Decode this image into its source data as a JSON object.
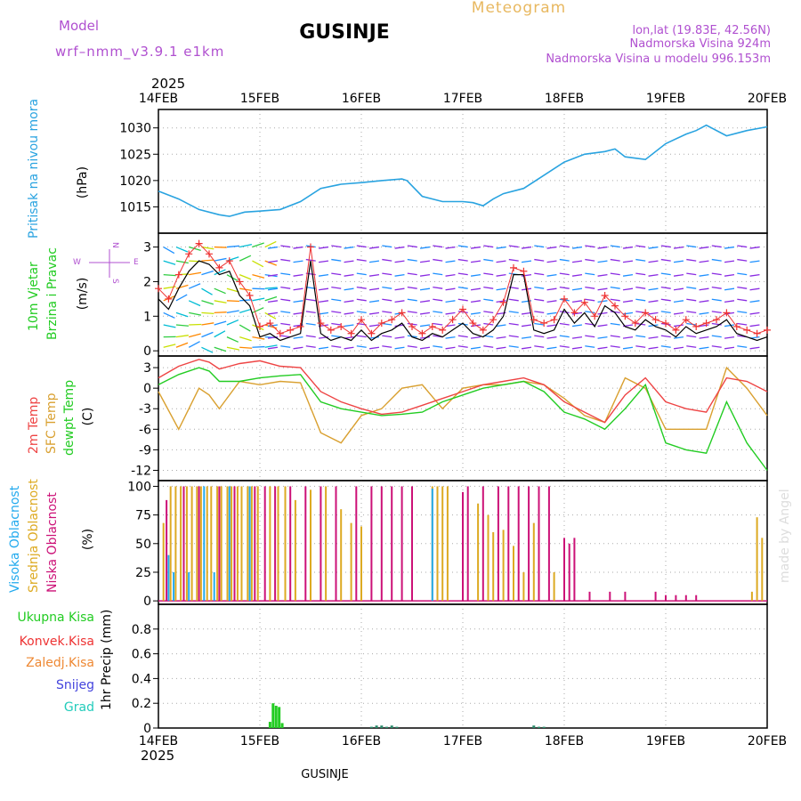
{
  "header": {
    "model_label": "Model",
    "model_name": "wrf–nmm_v3.9.1  e1km",
    "title": "GUSINJE",
    "meteogram_label": "Meteogram",
    "coords": "lon,lat (19.83E, 42.56N)",
    "altitude": "Nadmorska Visina 924m",
    "model_altitude": "Nadmorska Visina u modelu 996.153m",
    "year": "2025",
    "footer_title": "GUSINJE",
    "credit": "made by Angel"
  },
  "colors": {
    "pressure": "#29a3e0",
    "temp2m": "#ee4444",
    "sfc_temp": "#d9a030",
    "dewpt": "#22cc22",
    "cloud_high": "#22aaee",
    "cloud_mid": "#ddaa22",
    "cloud_low": "#cc1177",
    "label_purple": "#b050d0",
    "label_orange": "#e8b860",
    "precip_total": "#22cc22",
    "precip_conv": "#ee3333",
    "precip_frozen": "#ee8833",
    "precip_snow": "#4444dd",
    "precip_hail": "#22ccbb",
    "wind_speed": "#000000",
    "gust": "#ee3333"
  },
  "chart_data": [
    {
      "type": "line",
      "panel": "pressure",
      "ylabel_main": "Pritisak na nivou mora",
      "ylabel_unit": "(hPa)",
      "x_ticks": [
        "14FEB",
        "15FEB",
        "16FEB",
        "17FEB",
        "18FEB",
        "19FEB",
        "20FEB"
      ],
      "ylim": [
        1010,
        1033.5
      ],
      "yticks": [
        1015,
        1020,
        1025,
        1030
      ],
      "grid": true,
      "x": [
        0,
        0.2,
        0.4,
        0.6,
        0.7,
        0.85,
        1.0,
        1.2,
        1.4,
        1.6,
        1.8,
        2.0,
        2.2,
        2.4,
        2.45,
        2.6,
        2.8,
        3.0,
        3.1,
        3.2,
        3.3,
        3.4,
        3.6,
        3.8,
        4.0,
        4.2,
        4.4,
        4.5,
        4.6,
        4.8,
        5.0,
        5.2,
        5.3,
        5.4,
        5.6,
        5.8,
        6.0
      ],
      "series": [
        {
          "values": [
            1018,
            1016.5,
            1014.5,
            1013.5,
            1013.2,
            1014,
            1014.2,
            1014.5,
            1016,
            1018.5,
            1019.3,
            1019.6,
            1020,
            1020.3,
            1020,
            1017,
            1016,
            1016,
            1015.8,
            1015.2,
            1016.5,
            1017.5,
            1018.5,
            1021,
            1023.5,
            1025,
            1025.5,
            1026,
            1024.5,
            1024,
            1027,
            1028.8,
            1029.5,
            1030.5,
            1028.5,
            1029.5,
            1030.2
          ]
        }
      ]
    },
    {
      "type": "line",
      "panel": "wind",
      "ylabel_main": "10m Vjetar",
      "ylabel_sub": "Brzina i Pravac",
      "ylabel_unit": "(m/s)",
      "compass": {
        "n": "N",
        "s": "S",
        "w": "W",
        "e": "E"
      },
      "ylim": [
        -0.15,
        3.4
      ],
      "yticks": [
        0,
        1,
        2,
        3
      ],
      "grid": true,
      "x": [
        0,
        0.1,
        0.2,
        0.3,
        0.4,
        0.5,
        0.6,
        0.7,
        0.8,
        0.9,
        1.0,
        1.1,
        1.2,
        1.3,
        1.4,
        1.5,
        1.6,
        1.7,
        1.8,
        1.9,
        2.0,
        2.1,
        2.2,
        2.3,
        2.4,
        2.5,
        2.6,
        2.7,
        2.8,
        2.9,
        3.0,
        3.1,
        3.2,
        3.3,
        3.4,
        3.5,
        3.6,
        3.7,
        3.8,
        3.9,
        4.0,
        4.1,
        4.2,
        4.3,
        4.4,
        4.5,
        4.6,
        4.7,
        4.8,
        4.9,
        5.0,
        5.1,
        5.2,
        5.3,
        5.4,
        5.5,
        5.6,
        5.7,
        5.8,
        5.9,
        6.0
      ],
      "series": [
        {
          "name": "speed",
          "values": [
            1.5,
            1.2,
            1.8,
            2.3,
            2.6,
            2.5,
            2.2,
            2.3,
            1.6,
            1.3,
            0.4,
            0.5,
            0.3,
            0.4,
            0.5,
            2.6,
            0.5,
            0.3,
            0.4,
            0.3,
            0.6,
            0.3,
            0.5,
            0.6,
            0.8,
            0.4,
            0.3,
            0.5,
            0.4,
            0.6,
            0.8,
            0.5,
            0.4,
            0.6,
            1.0,
            2.2,
            2.2,
            0.6,
            0.5,
            0.6,
            1.2,
            0.8,
            1.1,
            0.7,
            1.3,
            1.1,
            0.7,
            0.6,
            0.9,
            0.7,
            0.6,
            0.4,
            0.7,
            0.5,
            0.6,
            0.7,
            0.9,
            0.5,
            0.4,
            0.3,
            0.4
          ]
        },
        {
          "name": "gust",
          "values": [
            1.8,
            1.5,
            2.2,
            2.8,
            3.1,
            2.8,
            2.4,
            2.6,
            2.0,
            1.6,
            0.7,
            0.8,
            0.5,
            0.6,
            0.7,
            3.0,
            0.8,
            0.6,
            0.7,
            0.5,
            0.9,
            0.5,
            0.8,
            0.9,
            1.1,
            0.7,
            0.5,
            0.7,
            0.6,
            0.9,
            1.2,
            0.8,
            0.6,
            0.9,
            1.4,
            2.4,
            2.3,
            0.9,
            0.8,
            0.9,
            1.5,
            1.1,
            1.4,
            1.0,
            1.6,
            1.3,
            1.0,
            0.8,
            1.1,
            0.9,
            0.8,
            0.6,
            0.9,
            0.7,
            0.8,
            0.9,
            1.1,
            0.7,
            0.6,
            0.5,
            0.6
          ]
        }
      ]
    },
    {
      "type": "line",
      "panel": "temperature",
      "ylabel_main": "2m Temp",
      "ylabel_sfc": "SFC Temp",
      "ylabel_dew": "dewpt Temp",
      "ylabel_unit": "(C)",
      "ylim": [
        -13.5,
        4.7
      ],
      "yticks": [
        3,
        0,
        -3,
        -6,
        -9,
        -12
      ],
      "grid": true,
      "x": [
        0,
        0.2,
        0.4,
        0.5,
        0.6,
        0.8,
        1.0,
        1.2,
        1.4,
        1.6,
        1.8,
        2.0,
        2.2,
        2.4,
        2.6,
        2.8,
        3.0,
        3.2,
        3.4,
        3.6,
        3.8,
        4.0,
        4.2,
        4.4,
        4.6,
        4.8,
        5.0,
        5.2,
        5.4,
        5.6,
        5.8,
        6.0
      ],
      "series": [
        {
          "name": "2m Temp",
          "values": [
            1.5,
            3.2,
            4.2,
            3.8,
            2.8,
            3.6,
            4.0,
            3.2,
            3.0,
            -0.5,
            -2.0,
            -3.0,
            -3.8,
            -3.5,
            -2.5,
            -1.5,
            -0.5,
            0.5,
            1.0,
            1.5,
            0.5,
            -2.0,
            -3.5,
            -5.0,
            -1.0,
            1.5,
            -2.0,
            -3.0,
            -3.5,
            1.5,
            1.0,
            -0.5
          ]
        },
        {
          "name": "SFC Temp",
          "values": [
            -0.5,
            -6.0,
            0.0,
            -1.0,
            -3.0,
            1.0,
            0.5,
            1.0,
            0.8,
            -6.5,
            -8.0,
            -4.0,
            -3.0,
            0.0,
            0.5,
            -3.0,
            0.0,
            0.5,
            0.5,
            1.0,
            0.5,
            -1.5,
            -4.0,
            -5.0,
            1.5,
            0.0,
            -6.0,
            -6.0,
            -6.0,
            3.0,
            0.0,
            -4.0
          ]
        },
        {
          "name": "dewpt Temp",
          "values": [
            0.5,
            2.0,
            3.0,
            2.5,
            1.0,
            1.0,
            1.5,
            1.8,
            2.0,
            -2.0,
            -3.0,
            -3.5,
            -4.0,
            -3.8,
            -3.5,
            -2.0,
            -1.0,
            0.0,
            0.5,
            1.0,
            -0.5,
            -3.5,
            -4.5,
            -6.0,
            -3.0,
            0.5,
            -8.0,
            -9.0,
            -9.5,
            -2.0,
            -8.0,
            -12.0
          ]
        }
      ]
    },
    {
      "type": "bar",
      "panel": "clouds",
      "ylabel_high": "Visoka Oblacnost",
      "ylabel_mid": "Srednja Oblacnost",
      "ylabel_low": "Niska Oblacnost",
      "ylabel_unit": "(%)",
      "ylim": [
        -3,
        105
      ],
      "yticks": [
        0,
        25,
        50,
        75,
        100
      ],
      "grid": true,
      "series": [
        {
          "name": "Visoka Oblacnost",
          "x": [
            0.1,
            0.15,
            0.3,
            0.45,
            0.55,
            0.7,
            0.9,
            2.7
          ],
          "values": [
            40,
            25,
            25,
            100,
            25,
            100,
            100,
            98
          ]
        },
        {
          "name": "Srednja Oblacnost",
          "x": [
            0.05,
            0.12,
            0.17,
            0.22,
            0.28,
            0.33,
            0.38,
            0.42,
            0.48,
            0.52,
            0.58,
            0.62,
            0.68,
            0.72,
            0.78,
            0.82,
            0.88,
            0.92,
            0.98,
            1.1,
            1.18,
            1.25,
            1.35,
            1.5,
            1.65,
            1.8,
            1.9,
            2.0,
            2.7,
            2.75,
            2.8,
            2.85,
            3.15,
            3.25,
            3.3,
            3.4,
            3.5,
            3.6,
            3.7,
            3.9,
            5.85,
            5.9,
            5.95
          ],
          "values": [
            68,
            100,
            100,
            100,
            100,
            100,
            100,
            100,
            100,
            100,
            100,
            100,
            100,
            100,
            100,
            100,
            100,
            100,
            100,
            100,
            100,
            100,
            88,
            97,
            100,
            80,
            68,
            65,
            100,
            100,
            100,
            100,
            85,
            75,
            60,
            62,
            48,
            25,
            68,
            25,
            8,
            73,
            55
          ]
        },
        {
          "name": "Niska Oblacnost",
          "x": [
            0.08,
            0.25,
            0.4,
            0.6,
            0.75,
            0.95,
            1.05,
            1.15,
            1.3,
            1.45,
            1.6,
            1.75,
            1.95,
            2.1,
            2.2,
            2.3,
            2.4,
            2.5,
            3.0,
            3.05,
            3.2,
            3.35,
            3.45,
            3.55,
            3.65,
            3.75,
            3.85,
            4.0,
            4.05,
            4.1,
            4.25,
            4.45,
            4.6,
            4.9,
            5.0,
            5.1,
            5.2,
            5.3
          ],
          "values": [
            88,
            100,
            100,
            100,
            100,
            100,
            100,
            100,
            100,
            100,
            100,
            100,
            100,
            100,
            100,
            100,
            100,
            100,
            95,
            100,
            100,
            100,
            100,
            100,
            100,
            100,
            100,
            55,
            50,
            55,
            8,
            8,
            8,
            8,
            5,
            5,
            5,
            5
          ]
        }
      ]
    },
    {
      "type": "bar",
      "panel": "precip",
      "ylabel_unit": "1hr Precip (mm)",
      "legend": [
        "Ukupna Kisa",
        "Konvek.Kisa",
        "Zaledj.Kisa",
        "Snijeg",
        "Grad"
      ],
      "ylim": [
        0,
        1.0
      ],
      "yticks": [
        0.8,
        0.6,
        0.4,
        0.2,
        0
      ],
      "grid": true,
      "x_ticks": [
        "14FEB",
        "15FEB",
        "16FEB",
        "17FEB",
        "18FEB",
        "19FEB",
        "20FEB"
      ],
      "series": [
        {
          "name": "Ukupna Kisa",
          "x": [
            1.1,
            1.13,
            1.16,
            1.19,
            1.22
          ],
          "values": [
            0.05,
            0.2,
            0.18,
            0.17,
            0.04
          ]
        },
        {
          "name": "Snijeg",
          "x": [
            2.1,
            2.15,
            2.2,
            2.25,
            2.3,
            2.35,
            3.7,
            3.75,
            3.8
          ],
          "values": [
            0.01,
            0.02,
            0.02,
            0.01,
            0.02,
            0.01,
            0.02,
            0.01,
            0.01
          ]
        }
      ]
    }
  ]
}
